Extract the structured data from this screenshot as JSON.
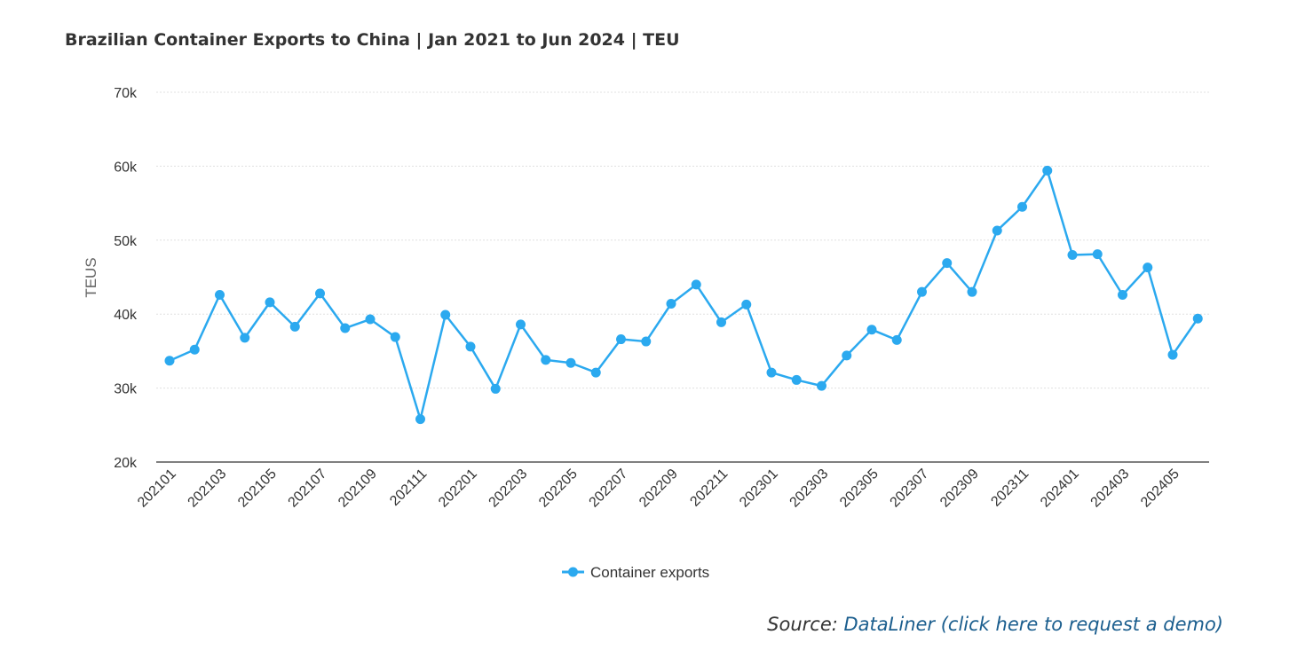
{
  "chart_data": {
    "type": "line",
    "title": "Brazilian Container Exports to China | Jan 2021 to Jun 2024 | TEU",
    "ylabel": "TEUS",
    "xlabel": "",
    "ylim": [
      20000,
      70000
    ],
    "y_ticks": [
      "20k",
      "30k",
      "40k",
      "50k",
      "60k",
      "70k"
    ],
    "y_tick_values": [
      20000,
      30000,
      40000,
      50000,
      60000,
      70000
    ],
    "x_tick_labels": [
      "202101",
      "202103",
      "202105",
      "202107",
      "202109",
      "202111",
      "202201",
      "202203",
      "202205",
      "202207",
      "202209",
      "202211",
      "202301",
      "202303",
      "202305",
      "202307",
      "202309",
      "202311",
      "202401",
      "202403",
      "202405"
    ],
    "categories": [
      "202101",
      "202102",
      "202103",
      "202104",
      "202105",
      "202106",
      "202107",
      "202108",
      "202109",
      "202110",
      "202111",
      "202112",
      "202201",
      "202202",
      "202203",
      "202204",
      "202205",
      "202206",
      "202207",
      "202208",
      "202209",
      "202210",
      "202211",
      "202212",
      "202301",
      "202302",
      "202303",
      "202304",
      "202305",
      "202306",
      "202307",
      "202308",
      "202309",
      "202310",
      "202311",
      "202312",
      "202401",
      "202402",
      "202403",
      "202404",
      "202405",
      "202406"
    ],
    "series": [
      {
        "name": "Container exports",
        "color": "#2ba9ef",
        "values": [
          33700,
          35200,
          42600,
          36800,
          41600,
          38300,
          42800,
          38100,
          39300,
          36900,
          25800,
          39900,
          35600,
          29900,
          38600,
          33800,
          33400,
          32100,
          36600,
          36300,
          41400,
          44000,
          38900,
          41300,
          32100,
          31100,
          30300,
          34400,
          37900,
          36500,
          43000,
          46900,
          43000,
          51300,
          54500,
          59400,
          48000,
          48100,
          42600,
          46300,
          34500,
          39400
        ]
      }
    ],
    "grid": true,
    "legend_position": "bottom-center"
  },
  "source": {
    "prefix": "Source: ",
    "link_text": "DataLiner (click here to request a demo)"
  }
}
